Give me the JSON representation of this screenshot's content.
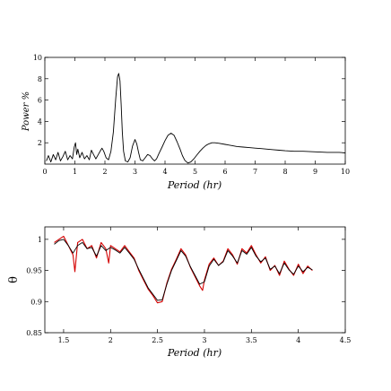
{
  "chart_data": [
    {
      "type": "line",
      "title": "",
      "xlabel": "Period (hr)",
      "ylabel": "Power %",
      "xlim": [
        0,
        10
      ],
      "ylim": [
        0,
        10
      ],
      "xticks": [
        0,
        1,
        2,
        3,
        4,
        5,
        6,
        7,
        8,
        9,
        10
      ],
      "yticks": [
        2,
        4,
        6,
        8,
        10
      ],
      "grid": false,
      "series": [
        {
          "color": "#000000",
          "x": [
            0.05,
            0.12,
            0.2,
            0.28,
            0.36,
            0.44,
            0.52,
            0.6,
            0.68,
            0.76,
            0.84,
            0.92,
            0.98,
            1.02,
            1.06,
            1.1,
            1.16,
            1.24,
            1.32,
            1.4,
            1.48,
            1.55,
            1.62,
            1.7,
            1.78,
            1.86,
            1.9,
            1.96,
            2.04,
            2.12,
            2.2,
            2.28,
            2.36,
            2.42,
            2.46,
            2.5,
            2.54,
            2.58,
            2.62,
            2.68,
            2.76,
            2.84,
            2.92,
            3.0,
            3.06,
            3.12,
            3.18,
            3.26,
            3.34,
            3.42,
            3.5,
            3.58,
            3.65,
            3.72,
            3.8,
            3.9,
            4.0,
            4.1,
            4.2,
            4.3,
            4.4,
            4.5,
            4.58,
            4.66,
            4.76,
            4.86,
            4.96,
            5.06,
            5.16,
            5.26,
            5.36,
            5.46,
            5.56,
            5.66,
            5.8,
            6.0,
            6.2,
            6.4,
            6.6,
            6.8,
            7.0,
            7.2,
            7.4,
            7.6,
            7.8,
            8.0,
            8.3,
            8.6,
            9.0,
            9.4,
            9.8,
            10.0
          ],
          "y": [
            0.3,
            0.8,
            0.2,
            0.9,
            0.4,
            1.1,
            0.3,
            0.7,
            1.2,
            0.4,
            0.8,
            0.5,
            1.6,
            2.0,
            0.9,
            1.4,
            0.6,
            1.1,
            0.5,
            0.8,
            0.4,
            1.3,
            0.9,
            0.5,
            0.9,
            1.3,
            1.5,
            1.2,
            0.6,
            0.4,
            1.2,
            3.0,
            6.2,
            8.2,
            8.5,
            7.8,
            5.6,
            3.0,
            1.2,
            0.3,
            0.2,
            0.6,
            1.7,
            2.3,
            1.9,
            1.1,
            0.4,
            0.3,
            0.6,
            0.9,
            0.8,
            0.5,
            0.3,
            0.5,
            1.0,
            1.6,
            2.2,
            2.7,
            2.9,
            2.7,
            2.1,
            1.4,
            0.8,
            0.35,
            0.1,
            0.2,
            0.5,
            0.85,
            1.2,
            1.5,
            1.75,
            1.9,
            2.0,
            2.0,
            1.95,
            1.85,
            1.75,
            1.65,
            1.6,
            1.55,
            1.5,
            1.45,
            1.4,
            1.35,
            1.3,
            1.25,
            1.2,
            1.2,
            1.15,
            1.1,
            1.1,
            1.05
          ]
        }
      ]
    },
    {
      "type": "line",
      "title": "",
      "xlabel": "Period (hr)",
      "ylabel": "θ",
      "xlim": [
        1.3,
        4.5
      ],
      "ylim": [
        0.85,
        1.02
      ],
      "xticks": [
        1.5,
        2,
        2.5,
        3,
        3.5,
        4,
        4.5
      ],
      "yticks": [
        0.85,
        0.9,
        0.95,
        1
      ],
      "grid": false,
      "series": [
        {
          "color": "#d40000",
          "x": [
            1.4,
            1.45,
            1.5,
            1.55,
            1.6,
            1.62,
            1.65,
            1.7,
            1.75,
            1.8,
            1.85,
            1.9,
            1.95,
            1.98,
            2.0,
            2.05,
            2.1,
            2.15,
            2.2,
            2.25,
            2.3,
            2.35,
            2.4,
            2.45,
            2.5,
            2.55,
            2.6,
            2.65,
            2.7,
            2.75,
            2.8,
            2.85,
            2.9,
            2.95,
            2.98,
            3.0,
            3.05,
            3.1,
            3.15,
            3.2,
            3.25,
            3.3,
            3.35,
            3.4,
            3.45,
            3.5,
            3.55,
            3.6,
            3.65,
            3.7,
            3.75,
            3.8,
            3.85,
            3.9,
            3.95,
            4.0,
            4.05,
            4.1,
            4.15
          ],
          "y": [
            0.995,
            1.0,
            1.005,
            0.99,
            0.975,
            0.948,
            0.995,
            1.0,
            0.985,
            0.99,
            0.97,
            0.995,
            0.985,
            0.962,
            0.99,
            0.985,
            0.98,
            0.99,
            0.98,
            0.97,
            0.95,
            0.935,
            0.92,
            0.91,
            0.898,
            0.9,
            0.93,
            0.952,
            0.968,
            0.985,
            0.975,
            0.955,
            0.94,
            0.925,
            0.918,
            0.935,
            0.96,
            0.97,
            0.958,
            0.965,
            0.985,
            0.975,
            0.96,
            0.985,
            0.978,
            0.99,
            0.975,
            0.962,
            0.972,
            0.95,
            0.958,
            0.942,
            0.965,
            0.952,
            0.942,
            0.96,
            0.945,
            0.957,
            0.95
          ]
        },
        {
          "color": "#000000",
          "x": [
            1.4,
            1.45,
            1.5,
            1.55,
            1.6,
            1.65,
            1.7,
            1.75,
            1.8,
            1.85,
            1.9,
            1.95,
            2.0,
            2.05,
            2.1,
            2.15,
            2.2,
            2.25,
            2.3,
            2.35,
            2.4,
            2.45,
            2.5,
            2.55,
            2.6,
            2.65,
            2.7,
            2.75,
            2.8,
            2.85,
            2.9,
            2.95,
            3.0,
            3.05,
            3.1,
            3.15,
            3.2,
            3.25,
            3.3,
            3.35,
            3.4,
            3.45,
            3.5,
            3.55,
            3.6,
            3.65,
            3.7,
            3.75,
            3.8,
            3.85,
            3.9,
            3.95,
            4.0,
            4.05,
            4.1,
            4.15
          ],
          "y": [
            0.992,
            0.998,
            1.0,
            0.99,
            0.978,
            0.99,
            0.995,
            0.985,
            0.987,
            0.973,
            0.99,
            0.982,
            0.987,
            0.983,
            0.978,
            0.987,
            0.978,
            0.968,
            0.952,
            0.937,
            0.922,
            0.912,
            0.902,
            0.903,
            0.928,
            0.95,
            0.966,
            0.982,
            0.973,
            0.956,
            0.942,
            0.928,
            0.932,
            0.957,
            0.968,
            0.958,
            0.964,
            0.982,
            0.973,
            0.962,
            0.982,
            0.976,
            0.987,
            0.973,
            0.964,
            0.97,
            0.952,
            0.957,
            0.945,
            0.962,
            0.951,
            0.944,
            0.957,
            0.948,
            0.955,
            0.951
          ]
        }
      ]
    }
  ]
}
